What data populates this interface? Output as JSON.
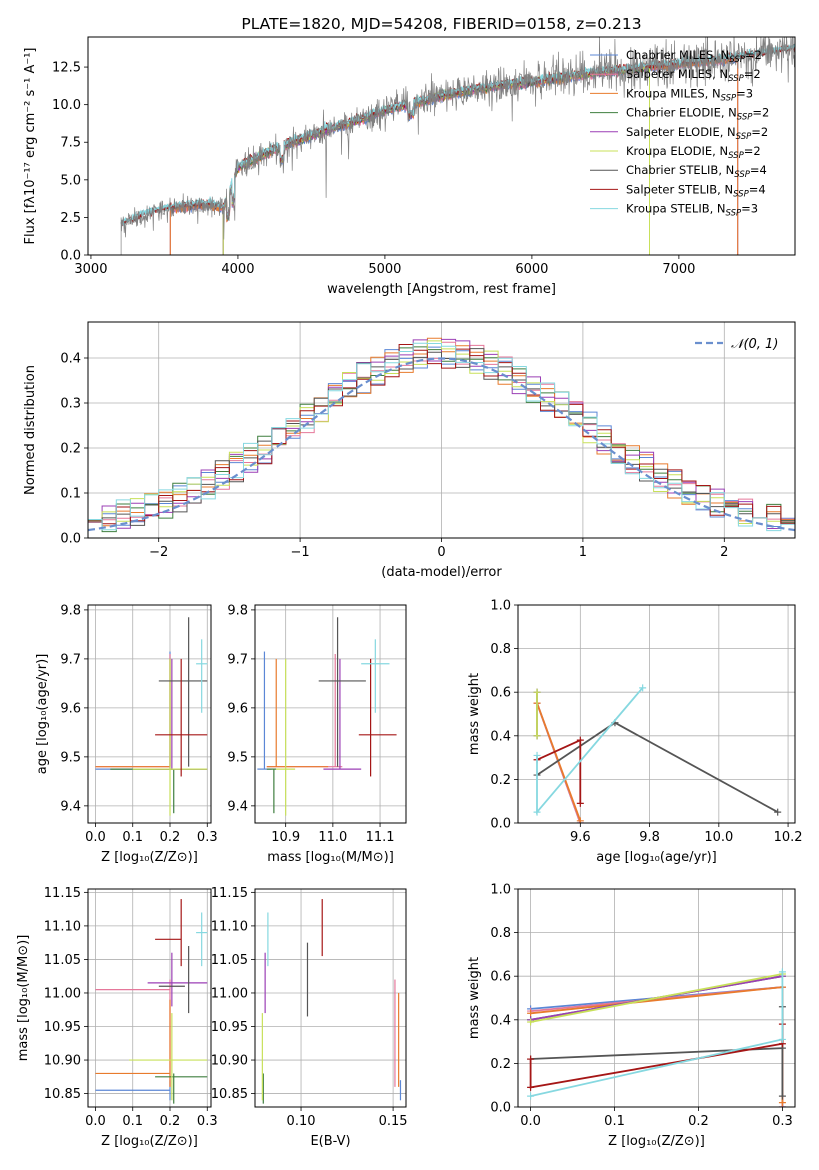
{
  "colors": {
    "Chabrier MILES": "#5b87d6",
    "Salpeter MILES": "#e5779a",
    "Kroupa MILES": "#e87b2d",
    "Chabrier ELODIE": "#3f7f3f",
    "Salpeter ELODIE": "#9b3fb5",
    "Kroupa ELODIE": "#c8e05a",
    "Chabrier STELIB": "#555555",
    "Salpeter STELIB": "#a51616",
    "Kroupa STELIB": "#86d8e0",
    "data": "#808080",
    "normal": "#6a8fce"
  },
  "chart_data": [
    {
      "id": "spectrum",
      "type": "line",
      "title": "PLATE=1820, MJD=54208, FIBERID=0158, z=0.213",
      "xlabel": "wavelength [Angstrom, rest frame]",
      "ylabel": "Flux [fλ10⁻¹⁷ erg cm⁻² s⁻¹ A⁻¹]",
      "xlim": [
        2980,
        7790
      ],
      "ylim": [
        0,
        14.5
      ],
      "xticks": [
        "3000",
        "4000",
        "5000",
        "6000",
        "7000"
      ],
      "yticks": [
        "0.0",
        "2.5",
        "5.0",
        "7.5",
        "10.0",
        "12.5"
      ],
      "data_range": [
        3205,
        7790
      ],
      "continuum": [
        [
          3205,
          2.0
        ],
        [
          3400,
          2.8
        ],
        [
          3600,
          3.2
        ],
        [
          3800,
          3.4
        ],
        [
          3900,
          3.1
        ],
        [
          4000,
          5.8
        ],
        [
          4200,
          6.8
        ],
        [
          4400,
          7.6
        ],
        [
          4600,
          8.3
        ],
        [
          4800,
          8.9
        ],
        [
          5000,
          9.6
        ],
        [
          5200,
          10.1
        ],
        [
          5400,
          10.6
        ],
        [
          5600,
          11.0
        ],
        [
          5800,
          11.3
        ],
        [
          6000,
          11.5
        ],
        [
          6200,
          11.8
        ],
        [
          6400,
          12.1
        ],
        [
          6600,
          12.3
        ],
        [
          6800,
          12.5
        ],
        [
          7000,
          12.7
        ],
        [
          7200,
          12.9
        ],
        [
          7400,
          13.1
        ],
        [
          7600,
          13.4
        ],
        [
          7790,
          13.7
        ]
      ],
      "legend": [
        {
          "name": "Chabrier MILES",
          "nssp": "2"
        },
        {
          "name": "Salpeter MILES",
          "nssp": "2"
        },
        {
          "name": "Kroupa MILES",
          "nssp": "3"
        },
        {
          "name": "Chabrier ELODIE",
          "nssp": "2"
        },
        {
          "name": "Salpeter ELODIE",
          "nssp": "2"
        },
        {
          "name": "Kroupa ELODIE",
          "nssp": "2"
        },
        {
          "name": "Chabrier STELIB",
          "nssp": "4"
        },
        {
          "name": "Salpeter STELIB",
          "nssp": "4"
        },
        {
          "name": "Kroupa STELIB",
          "nssp": "3"
        }
      ],
      "model_ranges": {
        "Chabrier MILES": [
          3540,
          7400
        ],
        "Salpeter MILES": [
          3540,
          7400
        ],
        "Kroupa MILES": [
          3540,
          7400
        ],
        "Chabrier ELODIE": [
          3900,
          6800
        ],
        "Salpeter ELODIE": [
          3900,
          6800
        ],
        "Kroupa ELODIE": [
          3900,
          6800
        ],
        "Chabrier STELIB": [
          3205,
          7790
        ],
        "Salpeter STELIB": [
          3205,
          7790
        ],
        "Kroupa STELIB": [
          3205,
          7790
        ]
      }
    },
    {
      "id": "residuals",
      "type": "line",
      "xlabel": "(data-model)/error",
      "ylabel": "Normed distribution",
      "xlim": [
        -2.5,
        2.5
      ],
      "ylim": [
        0,
        0.48
      ],
      "xticks": [
        "−2",
        "−1",
        "0",
        "1",
        "2"
      ],
      "yticks": [
        "0.0",
        "0.1",
        "0.2",
        "0.3",
        "0.4"
      ],
      "legend_label": "𝒩(0, 1)",
      "bin_width": 0.1
    },
    {
      "id": "age-vs-Z",
      "type": "scatter",
      "xlabel": "Z [log₁₀(Z/Z⊙)]",
      "ylabel": "age  [log₁₀(age/yr)]",
      "xlim": [
        -0.02,
        0.31
      ],
      "ylim": [
        9.365,
        9.81
      ],
      "xticks": [
        "0.0",
        "0.1",
        "0.2",
        "0.3"
      ],
      "yticks": [
        "9.4",
        "9.5",
        "9.6",
        "9.7",
        "9.8"
      ],
      "points": [
        {
          "model": "Chabrier MILES",
          "x": 0.2,
          "y": 9.475,
          "x0": 0.0,
          "x1": 0.2,
          "y0": 9.475,
          "y1": 9.715
        },
        {
          "model": "Salpeter MILES",
          "x": 0.2,
          "y": 9.48,
          "x0": 0.0,
          "x1": 0.2,
          "y0": 9.48,
          "y1": 9.71
        },
        {
          "model": "Kroupa MILES",
          "x": 0.2,
          "y": 9.48,
          "x0": 0.0,
          "x1": 0.2,
          "y0": 9.48,
          "y1": 9.7
        },
        {
          "model": "Chabrier ELODIE",
          "x": 0.21,
          "y": 9.475,
          "x0": 0.04,
          "x1": 0.3,
          "y0": 9.385,
          "y1": 9.475
        },
        {
          "model": "Salpeter ELODIE",
          "x": 0.205,
          "y": 9.475,
          "x0": 0.16,
          "x1": 0.3,
          "y0": 9.475,
          "y1": 9.7
        },
        {
          "model": "Kroupa ELODIE",
          "x": 0.2,
          "y": 9.475,
          "x0": 0.1,
          "x1": 0.3,
          "y0": 9.38,
          "y1": 9.7
        },
        {
          "model": "Chabrier STELIB",
          "x": 0.25,
          "y": 9.655,
          "x0": 0.17,
          "x1": 0.3,
          "y0": 9.48,
          "y1": 9.785
        },
        {
          "model": "Salpeter STELIB",
          "x": 0.23,
          "y": 9.545,
          "x0": 0.16,
          "x1": 0.3,
          "y0": 9.46,
          "y1": 9.7
        },
        {
          "model": "Kroupa STELIB",
          "x": 0.285,
          "y": 9.69,
          "x0": 0.27,
          "x1": 0.3,
          "y0": 9.59,
          "y1": 9.74
        }
      ]
    },
    {
      "id": "age-vs-mass",
      "type": "scatter",
      "xlabel": "mass [log₁₀(M/M⊙)]",
      "ylabel": "",
      "xlim": [
        10.835,
        11.155
      ],
      "ylim": [
        9.365,
        9.81
      ],
      "xticks": [
        "10.9",
        "11.0",
        "11.1"
      ],
      "yticks": [
        "9.4",
        "9.5",
        "9.6",
        "9.7",
        "9.8"
      ],
      "points": [
        {
          "model": "Chabrier MILES",
          "x": 10.855,
          "y": 9.475,
          "x0": 10.84,
          "x1": 10.87,
          "y0": 9.475,
          "y1": 9.715
        },
        {
          "model": "Salpeter MILES",
          "x": 11.005,
          "y": 9.48,
          "x0": 10.86,
          "x1": 11.02,
          "y0": 9.48,
          "y1": 9.71
        },
        {
          "model": "Kroupa MILES",
          "x": 10.88,
          "y": 9.48,
          "x0": 10.86,
          "x1": 10.99,
          "y0": 9.48,
          "y1": 9.7
        },
        {
          "model": "Chabrier ELODIE",
          "x": 10.875,
          "y": 9.475,
          "x0": 10.86,
          "x1": 10.88,
          "y0": 9.385,
          "y1": 9.475
        },
        {
          "model": "Salpeter ELODIE",
          "x": 11.015,
          "y": 9.475,
          "x0": 10.98,
          "x1": 11.06,
          "y0": 9.475,
          "y1": 9.7
        },
        {
          "model": "Kroupa ELODIE",
          "x": 10.9,
          "y": 9.475,
          "x0": 10.88,
          "x1": 10.92,
          "y0": 9.38,
          "y1": 9.7
        },
        {
          "model": "Chabrier STELIB",
          "x": 11.01,
          "y": 9.655,
          "x0": 10.97,
          "x1": 11.07,
          "y0": 9.48,
          "y1": 9.785
        },
        {
          "model": "Salpeter STELIB",
          "x": 11.08,
          "y": 9.545,
          "x0": 11.055,
          "x1": 11.135,
          "y0": 9.46,
          "y1": 9.7
        },
        {
          "model": "Kroupa STELIB",
          "x": 11.09,
          "y": 9.69,
          "x0": 11.06,
          "x1": 11.12,
          "y0": 9.59,
          "y1": 9.74
        }
      ]
    },
    {
      "id": "massweight-vs-age",
      "type": "line",
      "xlabel": "age  [log₁₀(age/yr)]",
      "ylabel": "mass weight",
      "xlim": [
        9.42,
        10.22
      ],
      "ylim": [
        0,
        1.0
      ],
      "xticks": [
        "9.6",
        "9.8",
        "10.0",
        "10.2"
      ],
      "yticks": [
        "0.0",
        "0.2",
        "0.4",
        "0.6",
        "0.8",
        "1.0"
      ],
      "series": [
        {
          "model": "Chabrier MILES",
          "x": [
            9.475,
            9.6
          ],
          "y": [
            0.55,
            0.0
          ]
        },
        {
          "model": "Salpeter MILES",
          "x": [
            9.475,
            9.6
          ],
          "y": [
            0.55,
            0.0
          ]
        },
        {
          "model": "Kroupa MILES",
          "x": [
            9.475,
            9.6
          ],
          "y": [
            0.55,
            0.01
          ]
        },
        {
          "model": "Chabrier ELODIE",
          "x": [
            9.475,
            9.475
          ],
          "y": [
            0.6,
            0.4
          ]
        },
        {
          "model": "Salpeter ELODIE",
          "x": [
            9.475,
            9.475
          ],
          "y": [
            0.6,
            0.4
          ]
        },
        {
          "model": "Kroupa ELODIE",
          "x": [
            9.475,
            9.475
          ],
          "y": [
            0.6,
            0.4
          ]
        },
        {
          "model": "Chabrier STELIB",
          "x": [
            9.475,
            9.7,
            10.17
          ],
          "y": [
            0.22,
            0.46,
            0.05
          ]
        },
        {
          "model": "Salpeter STELIB",
          "x": [
            9.475,
            9.6,
            9.6
          ],
          "y": [
            0.29,
            0.38,
            0.09
          ]
        },
        {
          "model": "Kroupa STELIB",
          "x": [
            9.475,
            9.475,
            9.78
          ],
          "y": [
            0.31,
            0.05,
            0.62
          ]
        }
      ]
    },
    {
      "id": "mass-vs-Z",
      "type": "scatter",
      "xlabel": "Z [log₁₀(Z/Z⊙)]",
      "ylabel": "mass [log₁₀(M/M⊙)]",
      "xlim": [
        -0.02,
        0.31
      ],
      "ylim": [
        10.83,
        11.155
      ],
      "xticks": [
        "0.0",
        "0.1",
        "0.2",
        "0.3"
      ],
      "yticks": [
        "10.85",
        "10.90",
        "10.95",
        "11.00",
        "11.05",
        "11.10",
        "11.15"
      ],
      "points": [
        {
          "model": "Chabrier MILES",
          "x": 0.2,
          "y": 10.855,
          "x0": 0.0,
          "x1": 0.2,
          "y0": 10.84,
          "y1": 10.87
        },
        {
          "model": "Salpeter MILES",
          "x": 0.2,
          "y": 11.005,
          "x0": 0.0,
          "x1": 0.2,
          "y0": 10.86,
          "y1": 11.02
        },
        {
          "model": "Kroupa MILES",
          "x": 0.2,
          "y": 10.88,
          "x0": 0.0,
          "x1": 0.2,
          "y0": 10.86,
          "y1": 10.99
        },
        {
          "model": "Chabrier ELODIE",
          "x": 0.21,
          "y": 10.875,
          "x0": 0.16,
          "x1": 0.3,
          "y0": 10.835,
          "y1": 10.88
        },
        {
          "model": "Salpeter ELODIE",
          "x": 0.205,
          "y": 11.015,
          "x0": 0.14,
          "x1": 0.3,
          "y0": 10.98,
          "y1": 11.06
        },
        {
          "model": "Kroupa ELODIE",
          "x": 0.205,
          "y": 10.9,
          "x0": 0.09,
          "x1": 0.3,
          "y0": 10.84,
          "y1": 10.97
        },
        {
          "model": "Chabrier STELIB",
          "x": 0.25,
          "y": 11.01,
          "x0": 0.17,
          "x1": 0.24,
          "y0": 10.97,
          "y1": 11.07
        },
        {
          "model": "Salpeter STELIB",
          "x": 0.23,
          "y": 11.08,
          "x0": 0.16,
          "x1": 0.23,
          "y0": 11.04,
          "y1": 11.14
        },
        {
          "model": "Kroupa STELIB",
          "x": 0.285,
          "y": 11.09,
          "x0": 0.27,
          "x1": 0.3,
          "y0": 11.04,
          "y1": 11.12
        }
      ]
    },
    {
      "id": "mass-vs-ebv",
      "type": "scatter",
      "xlabel": "E(B-V)",
      "ylabel": "",
      "xlim": [
        0.075,
        0.157
      ],
      "ylim": [
        10.83,
        11.155
      ],
      "xticks": [
        "0.10",
        "0.15"
      ],
      "yticks": [
        "10.85",
        "10.90",
        "10.95",
        "11.00",
        "11.05",
        "11.10",
        "11.15"
      ],
      "points": [
        {
          "model": "Chabrier MILES",
          "x": 0.154,
          "y0": 10.84,
          "y1": 10.87
        },
        {
          "model": "Salpeter MILES",
          "x": 0.151,
          "y0": 10.86,
          "y1": 11.02
        },
        {
          "model": "Kroupa MILES",
          "x": 0.153,
          "y0": 10.86,
          "y1": 11.0
        },
        {
          "model": "Chabrier ELODIE",
          "x": 0.0795,
          "y0": 10.835,
          "y1": 10.88
        },
        {
          "model": "Salpeter ELODIE",
          "x": 0.0805,
          "y0": 10.97,
          "y1": 11.06
        },
        {
          "model": "Kroupa ELODIE",
          "x": 0.079,
          "y0": 10.84,
          "y1": 10.97
        },
        {
          "model": "Chabrier STELIB",
          "x": 0.1035,
          "y0": 10.965,
          "y1": 11.075
        },
        {
          "model": "Salpeter STELIB",
          "x": 0.1115,
          "y0": 11.055,
          "y1": 11.14
        },
        {
          "model": "Kroupa STELIB",
          "x": 0.082,
          "y0": 11.04,
          "y1": 11.12
        }
      ]
    },
    {
      "id": "massweight-vs-Z",
      "type": "line",
      "xlabel": "Z [log₁₀(Z/Z⊙)]",
      "ylabel": "mass weight",
      "xlim": [
        -0.015,
        0.315
      ],
      "ylim": [
        0,
        1.0
      ],
      "xticks": [
        "0.0",
        "0.1",
        "0.2",
        "0.3"
      ],
      "yticks": [
        "0.0",
        "0.2",
        "0.4",
        "0.6",
        "0.8",
        "1.0"
      ],
      "series": [
        {
          "model": "Chabrier MILES",
          "x": [
            0.0,
            0.3,
            0.3
          ],
          "y": [
            0.45,
            0.55,
            0.0
          ]
        },
        {
          "model": "Salpeter MILES",
          "x": [
            0.0,
            0.3,
            0.3
          ],
          "y": [
            0.44,
            0.55,
            0.0
          ]
        },
        {
          "model": "Kroupa MILES",
          "x": [
            0.0,
            0.3,
            0.3
          ],
          "y": [
            0.43,
            0.55,
            0.02
          ]
        },
        {
          "model": "Chabrier ELODIE",
          "x": [
            0.0,
            0.3
          ],
          "y": [
            0.4,
            0.6
          ]
        },
        {
          "model": "Salpeter ELODIE",
          "x": [
            0.0,
            0.3
          ],
          "y": [
            0.4,
            0.6
          ]
        },
        {
          "model": "Kroupa ELODIE",
          "x": [
            0.0,
            0.3
          ],
          "y": [
            0.39,
            0.61
          ]
        },
        {
          "model": "Chabrier STELIB",
          "x": [
            0.0,
            0.3,
            0.3,
            0.3
          ],
          "y": [
            0.22,
            0.27,
            0.46,
            0.05
          ]
        },
        {
          "model": "Salpeter STELIB",
          "x": [
            0.0,
            0.0,
            0.3,
            0.3
          ],
          "y": [
            0.22,
            0.09,
            0.29,
            0.38
          ]
        },
        {
          "model": "Kroupa STELIB",
          "x": [
            0.0,
            0.3,
            0.3
          ],
          "y": [
            0.05,
            0.31,
            0.62
          ]
        }
      ]
    }
  ]
}
